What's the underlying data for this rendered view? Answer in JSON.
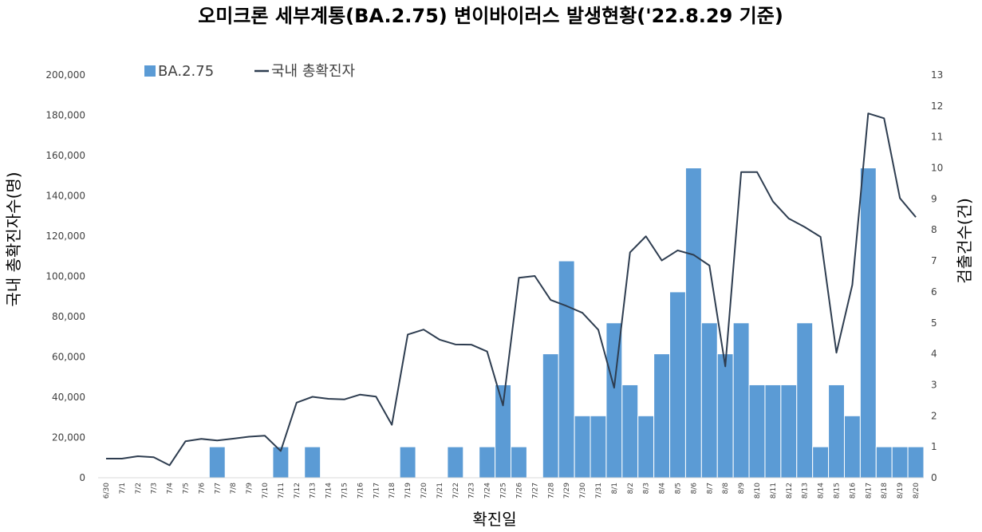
{
  "chart_data": {
    "type": "bar+line",
    "title": "오미크론 세부계통(BA.2.75) 변이바이러스 발생현황('22.8.29 기준)",
    "xlabel": "확진일",
    "ylabel_left": "국내 총확진자수(명)",
    "ylabel_right": "검출건수(건)",
    "ylim_left": [
      0,
      200000
    ],
    "ylim_right": [
      0,
      13
    ],
    "yticks_left": [
      "0",
      "20,000",
      "40,000",
      "60,000",
      "80,000",
      "100,000",
      "120,000",
      "140,000",
      "160,000",
      "180,000",
      "200,000"
    ],
    "yticks_right": [
      "0",
      "1",
      "2",
      "3",
      "4",
      "5",
      "6",
      "7",
      "8",
      "9",
      "10",
      "11",
      "12",
      "13"
    ],
    "categories": [
      "6/30",
      "7/1",
      "7/2",
      "7/3",
      "7/4",
      "7/5",
      "7/6",
      "7/7",
      "7/8",
      "7/9",
      "7/10",
      "7/11",
      "7/12",
      "7/13",
      "7/14",
      "7/15",
      "7/16",
      "7/17",
      "7/18",
      "7/19",
      "7/20",
      "7/21",
      "7/22",
      "7/23",
      "7/24",
      "7/25",
      "7/26",
      "7/27",
      "7/28",
      "7/29",
      "7/30",
      "7/31",
      "8/1",
      "8/2",
      "8/3",
      "8/4",
      "8/5",
      "8/6",
      "8/7",
      "8/8",
      "8/9",
      "8/10",
      "8/11",
      "8/12",
      "8/13",
      "8/14",
      "8/15",
      "8/16",
      "8/17",
      "8/18",
      "8/19",
      "8/20"
    ],
    "series": [
      {
        "name": "BA.2.75",
        "type": "bar",
        "axis": "right",
        "color": "#5B9BD5",
        "values": [
          0,
          0,
          0,
          0,
          0,
          0,
          0,
          1,
          0,
          0,
          0,
          1,
          0,
          1,
          0,
          0,
          0,
          0,
          0,
          1,
          0,
          0,
          1,
          0,
          1,
          3,
          1,
          0,
          4,
          7,
          2,
          2,
          5,
          3,
          2,
          4,
          6,
          10,
          5,
          4,
          5,
          3,
          3,
          3,
          5,
          1,
          3,
          2,
          10,
          1,
          1,
          1
        ]
      },
      {
        "name": "국내 총확진자",
        "type": "line",
        "axis": "left",
        "color": "#2E3D50",
        "values": [
          9500,
          9500,
          10700,
          10200,
          6200,
          18100,
          19300,
          18500,
          19400,
          20400,
          20900,
          13300,
          37300,
          40200,
          39200,
          38900,
          41300,
          40300,
          26300,
          71100,
          73600,
          68600,
          66200,
          66100,
          62700,
          35900,
          99300,
          100200,
          88300,
          85300,
          81900,
          73500,
          44700,
          111900,
          119900,
          107900,
          112900,
          110700,
          105400,
          55300,
          151800,
          151800,
          137200,
          128700,
          124500,
          119600,
          62100,
          95800,
          180900,
          178500,
          138800,
          129400
        ]
      }
    ],
    "legend": [
      "BA.2.75",
      "국내 총확진자"
    ],
    "legend_position": "top-left"
  }
}
